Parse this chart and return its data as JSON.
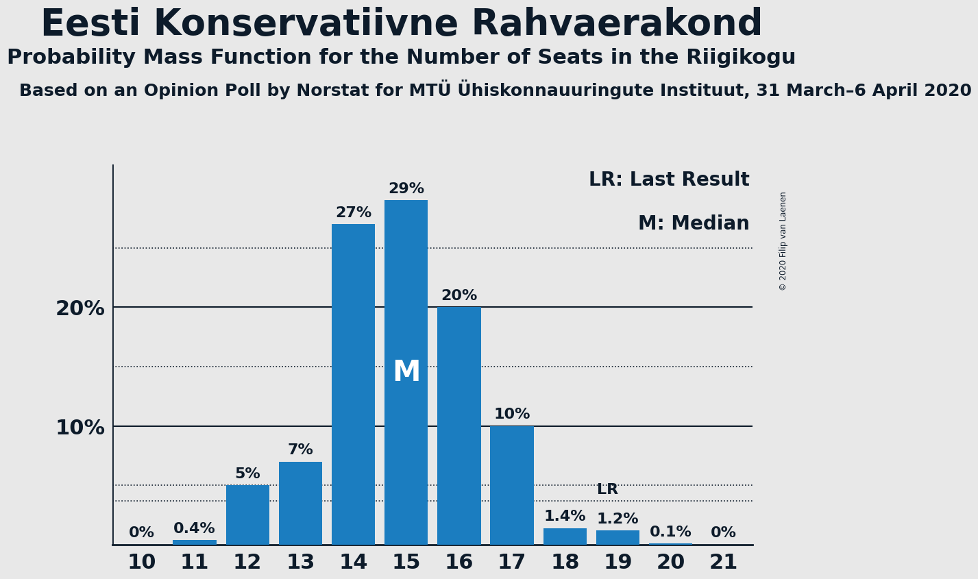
{
  "title": "Eesti Konservatiivne Rahvaerakond",
  "subtitle": "Probability Mass Function for the Number of Seats in the Riigikogu",
  "source_line": "Based on an Opinion Poll by Norstat for MTÜ Ühiskonnauuringute Instituut, 31 March–6 April 2020",
  "copyright": "© 2020 Filip van Laenen",
  "seats": [
    10,
    11,
    12,
    13,
    14,
    15,
    16,
    17,
    18,
    19,
    20,
    21
  ],
  "probabilities": [
    0.0,
    0.4,
    5.0,
    7.0,
    27.0,
    29.0,
    20.0,
    10.0,
    1.4,
    1.2,
    0.1,
    0.0
  ],
  "bar_color": "#1B7DC0",
  "background_color": "#E8E8E8",
  "text_color": "#0D1B2A",
  "median_seat": 15,
  "lr_value": 3.7,
  "yticks_solid": [
    10,
    20
  ],
  "yticks_dotted": [
    5,
    15,
    25
  ],
  "ylim": [
    0,
    32
  ],
  "legend_lr": "LR: Last Result",
  "legend_m": "M: Median",
  "bar_label_fontsize": 16,
  "title_fontsize": 38,
  "subtitle_fontsize": 22,
  "source_fontsize": 18,
  "ytick_fontsize": 22,
  "xtick_fontsize": 22,
  "legend_fontsize": 20,
  "m_fontsize": 30
}
